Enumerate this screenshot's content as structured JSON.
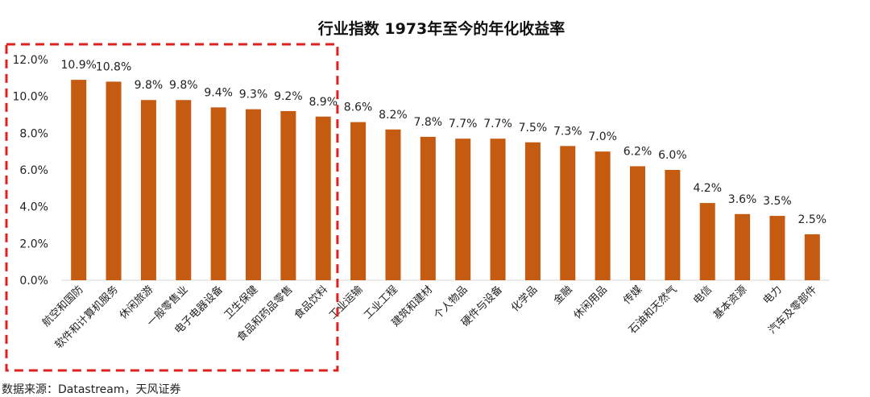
{
  "chart_data": {
    "type": "bar",
    "title": "行业指数 1973年至今的年化收益率",
    "categories": [
      "航空和国防",
      "软件和计算机服务",
      "休闲旅游",
      "一般零售业",
      "电子电器设备",
      "卫生保健",
      "食品和药品零售",
      "食品饮料",
      "工业运输",
      "工业工程",
      "建筑和建材",
      "个人物品",
      "硬件与设备",
      "化学品",
      "金融",
      "休闲用品",
      "传媒",
      "石油和天然气",
      "电信",
      "基本资源",
      "电力",
      "汽车及零部件"
    ],
    "values": [
      10.9,
      10.8,
      9.8,
      9.8,
      9.4,
      9.3,
      9.2,
      8.9,
      8.6,
      8.2,
      7.8,
      7.7,
      7.7,
      7.5,
      7.3,
      7.0,
      6.2,
      6.0,
      4.2,
      3.6,
      3.5,
      2.5
    ],
    "value_labels": [
      "10.9%",
      "10.8%",
      "9.8%",
      "9.8%",
      "9.4%",
      "9.3%",
      "9.2%",
      "8.9%",
      "8.6%",
      "8.2%",
      "7.8%",
      "7.7%",
      "7.7%",
      "7.5%",
      "7.3%",
      "7.0%",
      "6.2%",
      "6.0%",
      "4.2%",
      "3.6%",
      "3.5%",
      "2.5%"
    ],
    "yticks": [
      "0.0%",
      "2.0%",
      "4.0%",
      "6.0%",
      "8.0%",
      "10.0%",
      "12.0%"
    ],
    "ylim": [
      0,
      12
    ],
    "bar_color": "#C55A11",
    "highlight_box": {
      "first_index": 0,
      "last_index": 7,
      "color": "#E02020",
      "style": "dashed"
    },
    "xlabel": "",
    "ylabel": "",
    "grid": false
  },
  "footer": {
    "source": "数据来源：Datastream，天风证券"
  }
}
